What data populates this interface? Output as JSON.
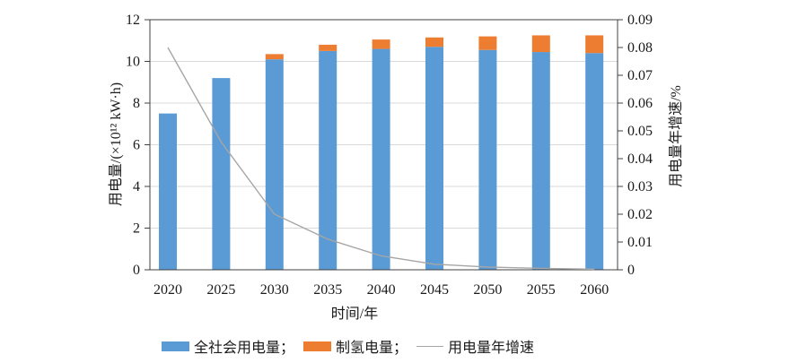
{
  "chart_data": {
    "type": "bar",
    "stacked": true,
    "title": "",
    "categories": [
      "2020",
      "2025",
      "2030",
      "2035",
      "2040",
      "2045",
      "2050",
      "2055",
      "2060"
    ],
    "series": [
      {
        "name": "全社会用电量",
        "type": "bar",
        "axis": "left",
        "color": "#5b9bd5",
        "values": [
          7.5,
          9.2,
          10.1,
          10.5,
          10.6,
          10.7,
          10.55,
          10.45,
          10.4
        ]
      },
      {
        "name": "制氢电量",
        "type": "bar",
        "axis": "left",
        "color": "#ed7d31",
        "values": [
          0,
          0,
          0.25,
          0.3,
          0.45,
          0.45,
          0.65,
          0.8,
          0.85
        ]
      },
      {
        "name": "用电量年增速",
        "type": "line",
        "axis": "right",
        "color": "#a6a6a6",
        "values": [
          0.08,
          0.046,
          0.02,
          0.011,
          0.005,
          0.002,
          0.001,
          0.0005,
          0.0002
        ]
      }
    ],
    "xlabel": "时间/年",
    "ylabel_left": "用电量/(×10¹² kW·h)",
    "ylabel_right": "用电量年增速/%",
    "yleft": {
      "min": 0,
      "max": 12,
      "step": 2,
      "ticks": [
        "0",
        "2",
        "4",
        "6",
        "8",
        "10",
        "12"
      ]
    },
    "yright": {
      "min": 0,
      "max": 0.09,
      "step": 0.01,
      "ticks": [
        "0",
        "0.01",
        "0.02",
        "0.03",
        "0.04",
        "0.05",
        "0.06",
        "0.07",
        "0.08",
        "0.09"
      ]
    },
    "grid": true,
    "legend_position": "bottom",
    "legend": [
      {
        "label": "全社会用电量；",
        "swatch": "bar",
        "color": "#5b9bd5"
      },
      {
        "label": "制氢电量；",
        "swatch": "bar",
        "color": "#ed7d31"
      },
      {
        "label": "用电量年增速",
        "swatch": "line",
        "color": "#a6a6a6"
      }
    ],
    "colors": {
      "grid": "#d9d9d9",
      "axis": "#404040",
      "text": "#1a1a1a"
    }
  }
}
